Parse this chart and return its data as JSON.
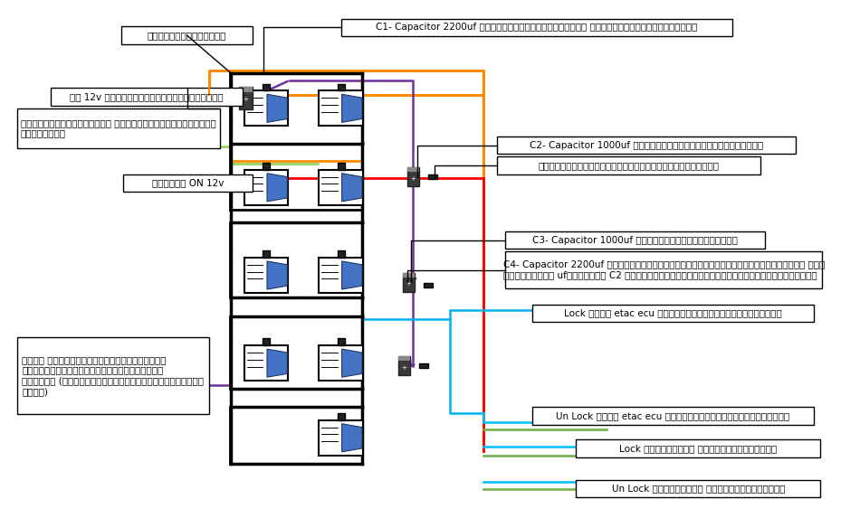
{
  "labels": {
    "ground": "กราวด์ลงตัวถัง",
    "power12v": "ไฟ 12v ที่มีการจ่ายกระแสตลอด",
    "check_wire": "สายเช็คประตูแล้ม ถ้าประตูแล้มระบบจะ\nไม่ทำงาน",
    "switch_on": "สวิตช์ ON 12v",
    "c1": "C1- Capacitor 2200uf หรือมากกว่านี้ก็ได้ ใช้หน่วงไฟประตูแล้ม",
    "c2": "C2- Capacitor 1000uf ทำหน้าที่ลือคประตูประตู",
    "diode": "ไดโอดป้องกันไม่ให้กระแสไฟไหลกลับ",
    "c3": "C3- Capacitor 1000uf หน่วงเวลาประตูแล้ม",
    "c4": "C4- Capacitor 2200uf เพื่อตัดระบบเชื่อนทรัลสล้อกจากประตู และ\nต้องมีค่า ufมากกว่า C2 เสมอถ้าน้อยกว่าระบบสล็อคจะไม่ทำงาน",
    "lock_etac": "Lock ฝึ่ง etac ecu ไฟที่ออกมาเป็นชั่วคราว",
    "unlock_etac": "Un Lock ฝึ่ง etac ecu ไฟที่ออกมาเป็นชั่วคราว",
    "lock_door": "Lock ฝึ่งประตู จ่ายไฟชั่วคราว",
    "unlock_door": "Un Lock ฝึ่งประตู จ่ายไฟชั่วคราว",
    "break_signal": "เบรก เส้นนี้จะจ่ายสัญญาณลบ\nตลอดเมื่อกดเบรกจะทำการตัด\nสัญญาณ (จากที่ผมใช้มิเตอร์วัดคุณะ\nครับ)"
  },
  "colors": {
    "orange": "#FF8C00",
    "purple": "#7030A0",
    "green_line": "#92D050",
    "red": "#FF0000",
    "black": "#000000",
    "blue_line": "#00B0F0",
    "cyan_line": "#00FFFF",
    "olive_line": "#70AD47",
    "relay_blue": "#4472C4",
    "relay_dark": "#1F3864",
    "cap_dark": "#3A3A3A",
    "bg": "#FFFFFF"
  }
}
